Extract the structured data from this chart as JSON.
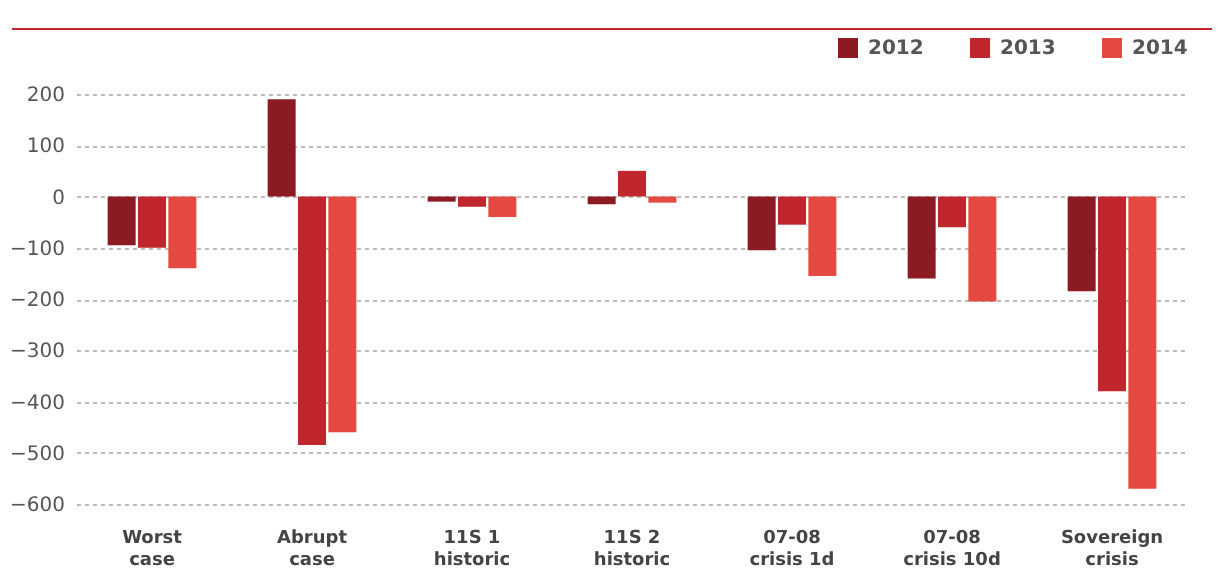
{
  "chart_data": {
    "type": "bar",
    "categories": [
      "Worst\ncase",
      "Abrupt\ncase",
      "11S 1\nhistoric",
      "11S 2\nhistoric",
      "07-08\ncrisis 1d",
      "07-08\ncrisis 10d",
      "Sovereign\ncrisis"
    ],
    "series": [
      {
        "name": "2012",
        "color": "#8b1a22",
        "values": [
          -95,
          190,
          -10,
          -15,
          -105,
          -160,
          -185
        ]
      },
      {
        "name": "2013",
        "color": "#c0272d",
        "values": [
          -100,
          -485,
          -20,
          50,
          -55,
          -60,
          -380
        ]
      },
      {
        "name": "2014",
        "color": "#e44a41",
        "values": [
          -140,
          -460,
          -40,
          -12,
          -155,
          -205,
          -570
        ]
      }
    ],
    "ylim": [
      -600,
      200
    ],
    "yticks": [
      200,
      100,
      0,
      -100,
      -200,
      -300,
      -400,
      -500,
      -600
    ],
    "grid": "y",
    "legend": "top right"
  }
}
